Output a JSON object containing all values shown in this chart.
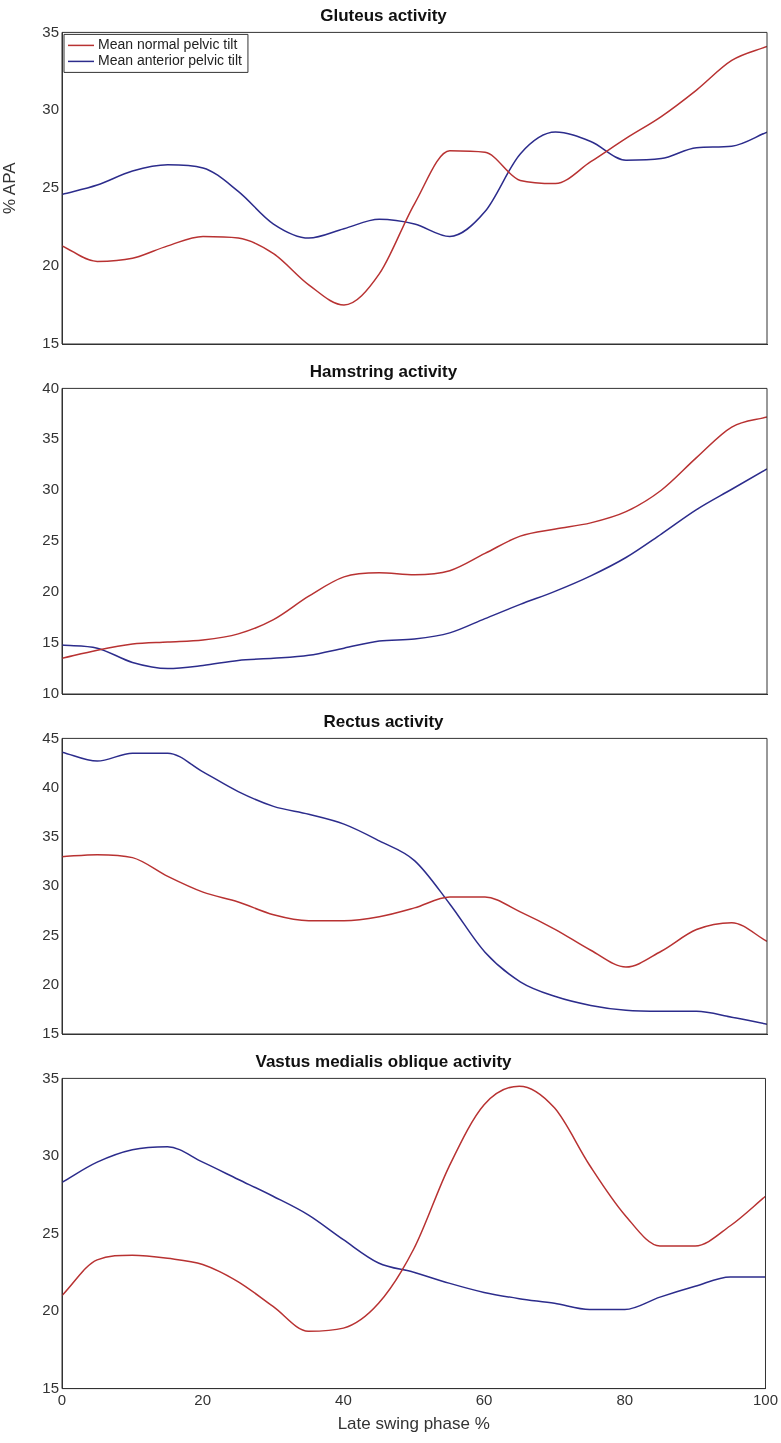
{
  "chart_data": [
    {
      "type": "line",
      "title": "Gluteus activity",
      "ylabel": "% APA",
      "legend": "top left",
      "tick_labels": "y",
      "xlim": [
        0,
        100
      ],
      "xticks": [
        0,
        20,
        40,
        60,
        80,
        100
      ],
      "ylim": [
        15,
        35
      ],
      "yticks": [
        15,
        20,
        25,
        30,
        35
      ],
      "x": [
        0,
        5,
        10,
        15,
        20,
        25,
        30,
        35,
        40,
        45,
        50,
        55,
        60,
        65,
        70,
        75,
        80,
        85,
        90,
        95,
        100
      ],
      "series": [
        {
          "name": "Mean normal pelvic tilt",
          "color": "#b83232",
          "values": [
            21.3,
            20.3,
            20.5,
            21.3,
            21.9,
            21.8,
            20.8,
            18.8,
            17.5,
            19.5,
            24,
            27.4,
            27.3,
            25.5,
            25.3,
            26.7,
            28.2,
            29.6,
            31.3,
            33.2,
            34.1
          ]
        },
        {
          "name": "Mean anterior pelvic tilt",
          "color": "#2c2c8c",
          "values": [
            24.6,
            25.2,
            26.1,
            26.5,
            26.3,
            24.8,
            22.7,
            21.8,
            22.4,
            23,
            22.7,
            21.9,
            23.5,
            27.2,
            28.6,
            28,
            26.8,
            26.9,
            27.6,
            27.7,
            28.6
          ]
        }
      ]
    },
    {
      "type": "line",
      "title": "Hamstring activity",
      "tick_labels": "y",
      "xlim": [
        0,
        100
      ],
      "xticks": [
        0,
        20,
        40,
        60,
        80,
        100
      ],
      "ylim": [
        10,
        40
      ],
      "yticks": [
        10,
        15,
        20,
        25,
        30,
        35,
        40
      ],
      "x": [
        0,
        5,
        10,
        15,
        20,
        25,
        30,
        35,
        40,
        45,
        50,
        55,
        60,
        65,
        70,
        75,
        80,
        85,
        90,
        95,
        100
      ],
      "series": [
        {
          "color": "#b83232",
          "values": [
            13.5,
            14.3,
            14.9,
            15.1,
            15.3,
            15.9,
            17.3,
            19.6,
            21.5,
            21.9,
            21.7,
            22.1,
            23.8,
            25.5,
            26.2,
            26.8,
            27.9,
            30,
            33.2,
            36.2,
            37.2
          ]
        },
        {
          "color": "#2c2c8c",
          "values": [
            14.8,
            14.5,
            13.1,
            12.5,
            12.8,
            13.3,
            13.5,
            13.8,
            14.5,
            15.2,
            15.4,
            16,
            17.4,
            18.8,
            20.1,
            21.6,
            23.4,
            25.7,
            28.1,
            30.1,
            32.1
          ]
        }
      ]
    },
    {
      "type": "line",
      "title": "Rectus activity",
      "tick_labels": "y",
      "xlim": [
        0,
        100
      ],
      "xticks": [
        0,
        20,
        40,
        60,
        80,
        100
      ],
      "ylim": [
        15,
        45
      ],
      "yticks": [
        15,
        20,
        25,
        30,
        35,
        40,
        45
      ],
      "x": [
        0,
        5,
        10,
        15,
        20,
        25,
        30,
        35,
        40,
        45,
        50,
        55,
        60,
        65,
        70,
        75,
        80,
        85,
        90,
        95,
        100
      ],
      "series": [
        {
          "color": "#b83232",
          "values": [
            33,
            33.2,
            32.9,
            31,
            29.4,
            28.4,
            27.1,
            26.5,
            26.5,
            26.9,
            27.8,
            28.9,
            28.9,
            27.4,
            25.6,
            23.5,
            21.8,
            23.4,
            25.6,
            26.3,
            24.4
          ]
        },
        {
          "color": "#2c2c8c",
          "values": [
            43.6,
            42.7,
            43.5,
            43.5,
            41.6,
            39.6,
            38.1,
            37.3,
            36.3,
            34.6,
            32.6,
            28.2,
            23.3,
            20.3,
            18.8,
            17.9,
            17.4,
            17.3,
            17.3,
            16.7,
            16
          ]
        }
      ]
    },
    {
      "type": "line",
      "title": "Vastus medialis oblique activity",
      "xlabel": "Late swing phase %",
      "xlim": [
        0,
        100
      ],
      "xticks": [
        0,
        20,
        40,
        60,
        80,
        100
      ],
      "ylim": [
        15,
        35
      ],
      "yticks": [
        15,
        20,
        25,
        30,
        35
      ],
      "x": [
        0,
        5,
        10,
        15,
        20,
        25,
        30,
        35,
        40,
        45,
        50,
        55,
        60,
        65,
        70,
        75,
        80,
        85,
        90,
        95,
        100
      ],
      "series": [
        {
          "color": "#b83232",
          "values": [
            21,
            23.3,
            23.6,
            23.4,
            23,
            21.9,
            20.3,
            18.7,
            18.9,
            20.5,
            24,
            29.3,
            33.3,
            34.5,
            33.1,
            29.4,
            26.2,
            24.2,
            24.2,
            25.5,
            27.4
          ]
        },
        {
          "color": "#2c2c8c",
          "values": [
            28.3,
            29.6,
            30.4,
            30.6,
            29.6,
            28.5,
            27.4,
            26.2,
            24.6,
            23.1,
            22.5,
            21.8,
            21.2,
            20.8,
            20.5,
            20.1,
            20.1,
            20.9,
            21.6,
            22.2,
            22.2
          ]
        }
      ]
    }
  ]
}
